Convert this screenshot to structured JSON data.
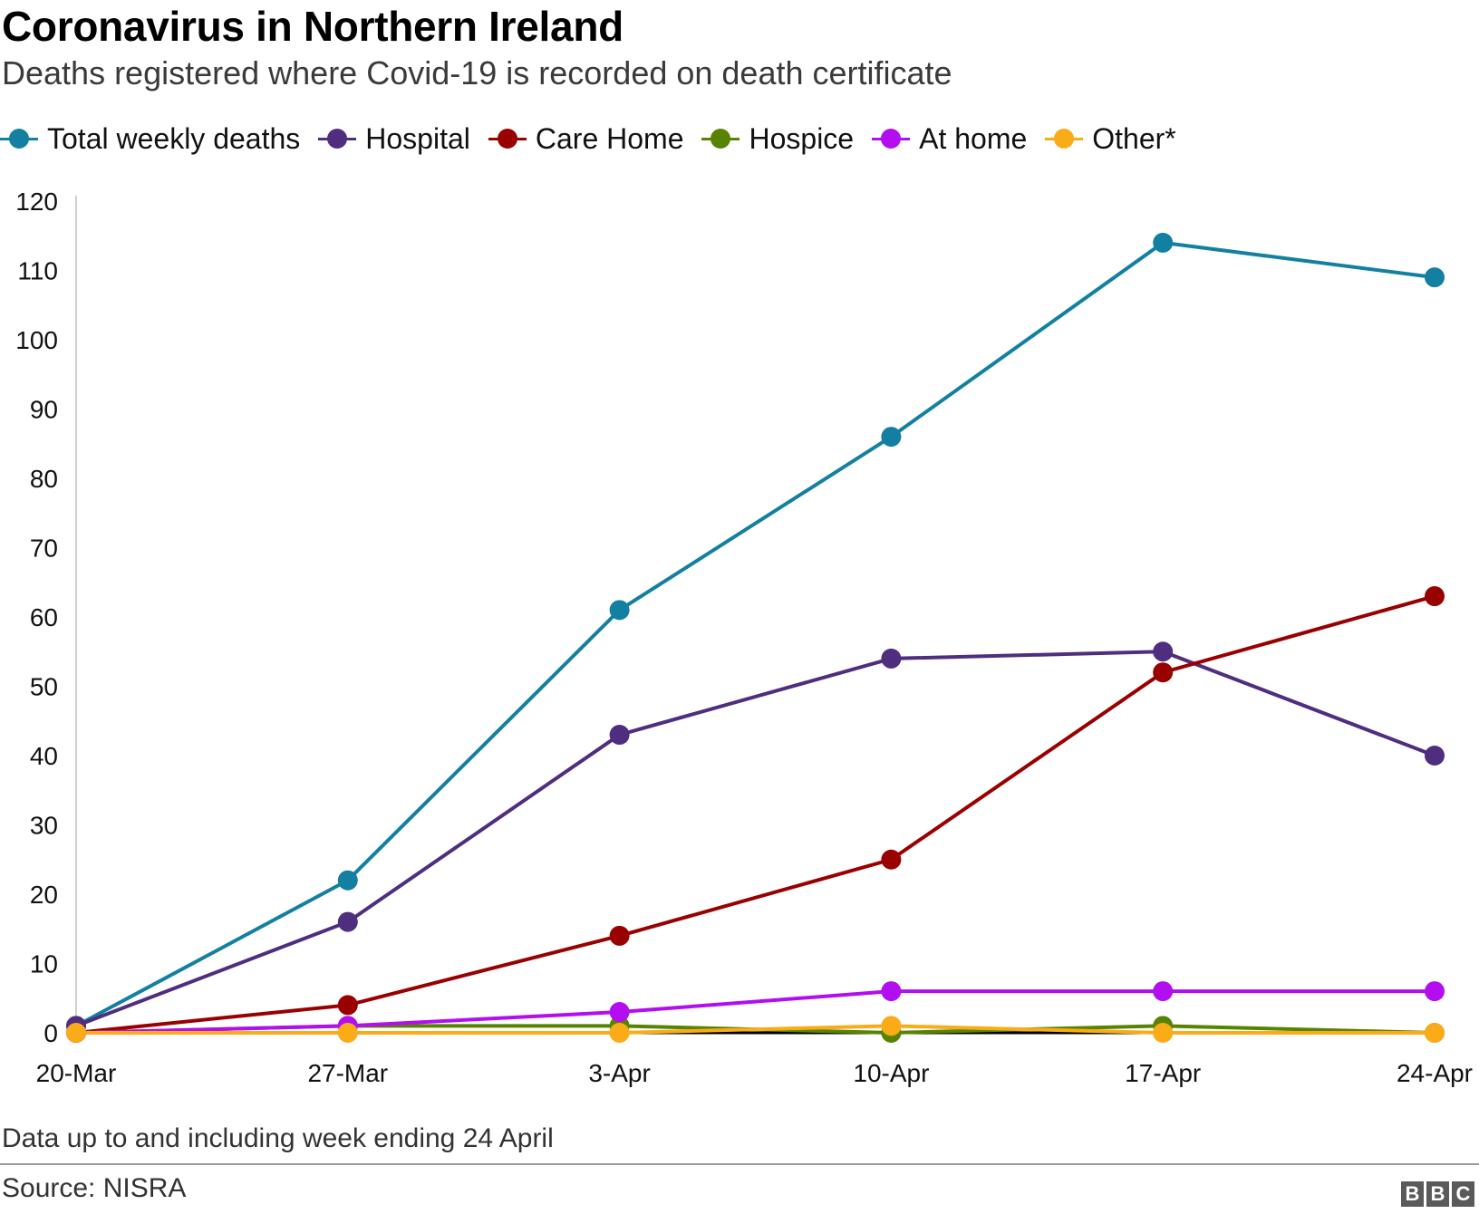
{
  "header": {
    "title": "Coronavirus in Northern Ireland",
    "subtitle": "Deaths registered where Covid-19 is recorded on death certificate"
  },
  "legend": {
    "position": "top-left",
    "items": [
      {
        "label": "Total weekly deaths",
        "color": "#1380A1"
      },
      {
        "label": "Hospital",
        "color": "#4F2D7F"
      },
      {
        "label": "Care Home",
        "color": "#990000"
      },
      {
        "label": "Hospice",
        "color": "#588300"
      },
      {
        "label": "At home",
        "color": "#B20EF0"
      },
      {
        "label": "Other*",
        "color": "#FAAB18"
      }
    ]
  },
  "chart_data": {
    "type": "line",
    "title": "Coronavirus in Northern Ireland",
    "subtitle": "Deaths registered where Covid-19 is recorded on death certificate",
    "xlabel": "",
    "ylabel": "",
    "x": [
      "20-Mar",
      "27-Mar",
      "3-Apr",
      "10-Apr",
      "17-Apr",
      "24-Apr"
    ],
    "ylim": [
      0,
      120
    ],
    "yticks": [
      0,
      10,
      20,
      30,
      40,
      50,
      60,
      70,
      80,
      90,
      100,
      110,
      120
    ],
    "grid": false,
    "legend_position": "top-left",
    "series": [
      {
        "name": "Total weekly deaths",
        "color": "#1380A1",
        "values": [
          1,
          22,
          61,
          86,
          114,
          109
        ]
      },
      {
        "name": "Hospital",
        "color": "#4F2D7F",
        "values": [
          1,
          16,
          43,
          54,
          55,
          40
        ]
      },
      {
        "name": "Care Home",
        "color": "#990000",
        "values": [
          0,
          4,
          14,
          25,
          52,
          63
        ]
      },
      {
        "name": "Hospice",
        "color": "#588300",
        "values": [
          0,
          1,
          1,
          0,
          1,
          0
        ]
      },
      {
        "name": "At home",
        "color": "#B20EF0",
        "values": [
          0,
          1,
          3,
          6,
          6,
          6
        ]
      },
      {
        "name": "Other*",
        "color": "#FAAB18",
        "values": [
          0,
          0,
          0,
          1,
          0,
          0
        ]
      }
    ]
  },
  "footer": {
    "note": "Data up to and including week ending 24 April",
    "source": "Source: NISRA",
    "logo_letters": [
      "B",
      "B",
      "C"
    ]
  }
}
